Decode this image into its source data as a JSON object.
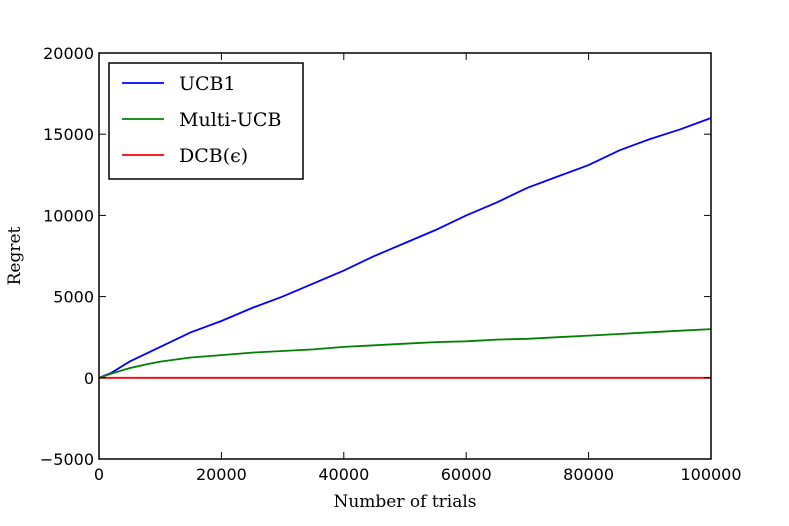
{
  "chart_data": {
    "type": "line",
    "title": "",
    "xlabel": "Number of trials",
    "ylabel": "Regret",
    "xlim": [
      0,
      100000
    ],
    "ylim": [
      -5000,
      20000
    ],
    "xticks": [
      0,
      20000,
      40000,
      60000,
      80000,
      100000
    ],
    "xtick_labels": [
      "0",
      "20000",
      "40000",
      "60000",
      "80000",
      "100000"
    ],
    "yticks": [
      -5000,
      0,
      5000,
      10000,
      15000,
      20000
    ],
    "ytick_labels": [
      "−5000",
      "0",
      "5000",
      "10000",
      "15000",
      "20000"
    ],
    "grid": false,
    "legend_position": "top-left",
    "series": [
      {
        "name": "UCB1",
        "color": "#0000ff",
        "x": [
          0,
          2000,
          5000,
          10000,
          15000,
          20000,
          25000,
          30000,
          35000,
          40000,
          45000,
          50000,
          55000,
          60000,
          65000,
          70000,
          75000,
          80000,
          85000,
          90000,
          95000,
          100000
        ],
        "y": [
          0,
          300,
          1000,
          1900,
          2800,
          3500,
          4300,
          5000,
          5800,
          6600,
          7500,
          8300,
          9100,
          10000,
          10800,
          11700,
          12400,
          13100,
          14000,
          14700,
          15300,
          16000
        ]
      },
      {
        "name": "Multi-UCB",
        "color": "#008000",
        "x": [
          0,
          2000,
          5000,
          8000,
          10000,
          15000,
          20000,
          25000,
          30000,
          35000,
          40000,
          45000,
          50000,
          55000,
          60000,
          65000,
          70000,
          75000,
          80000,
          85000,
          90000,
          95000,
          100000
        ],
        "y": [
          0,
          250,
          600,
          850,
          1000,
          1250,
          1400,
          1550,
          1650,
          1750,
          1900,
          2000,
          2100,
          2200,
          2250,
          2350,
          2400,
          2500,
          2600,
          2700,
          2800,
          2900,
          3000
        ]
      },
      {
        "name": "DCB(ϵ)",
        "color": "#ff0000",
        "x": [
          0,
          100000
        ],
        "y": [
          0,
          0
        ]
      }
    ]
  }
}
